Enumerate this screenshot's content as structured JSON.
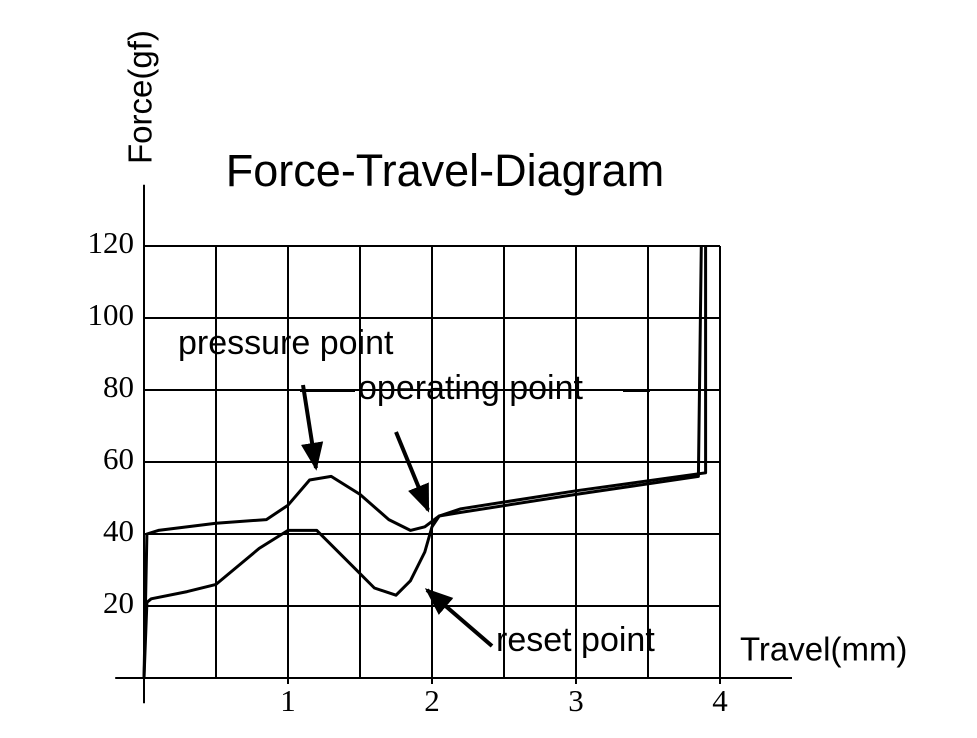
{
  "chart_data": {
    "type": "line",
    "title": "Force-Travel-Diagram",
    "x_label": "Travel(mm)",
    "y_label": "Force(gf)",
    "series": [
      {
        "color": "#000000",
        "x": [
          0,
          0.02,
          0.1,
          0.5,
          0.85,
          1.0,
          1.15,
          1.3,
          1.5,
          1.7,
          1.85,
          1.95,
          2.05,
          2.2,
          3.0,
          3.85,
          3.87
        ],
        "values": [
          0,
          40,
          41,
          43,
          44,
          48,
          55,
          56,
          51,
          44,
          41,
          42,
          45,
          46,
          51,
          56,
          120
        ]
      },
      {
        "color": "#000000",
        "x": [
          3.9,
          3.9,
          3.0,
          2.2,
          2.05,
          2.0,
          1.95,
          1.85,
          1.75,
          1.6,
          1.4,
          1.2,
          1.0,
          0.8,
          0.5,
          0.3,
          0.05,
          0.02,
          0
        ],
        "values": [
          120,
          57,
          52,
          47,
          45,
          42,
          35,
          27,
          23,
          25,
          33,
          41,
          41,
          36,
          26,
          24,
          22,
          21,
          0
        ]
      }
    ],
    "xlim": [
      -0.2,
      4.5
    ],
    "ylim": [
      -7,
      137
    ],
    "xticks": [
      1,
      2,
      3,
      4
    ],
    "yticks": [
      20,
      40,
      60,
      80,
      100,
      120
    ],
    "xgrid": [
      0.5,
      1,
      1.5,
      2,
      2.5,
      3,
      3.5,
      4
    ],
    "grid": true,
    "annotations": [
      "pressure point",
      "operating point",
      "reset point"
    ]
  }
}
